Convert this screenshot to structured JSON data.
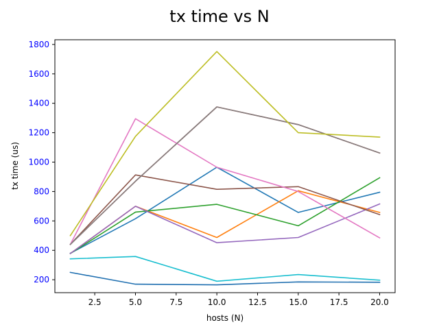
{
  "chart_data": {
    "type": "line",
    "title": "tx time vs N",
    "xlabel": "hosts (N)",
    "ylabel": "tx time (us)",
    "xlim": [
      0.05,
      20.95
    ],
    "ylim": [
      112,
      1832
    ],
    "xticks": [
      2.5,
      5.0,
      7.5,
      10.0,
      12.5,
      15.0,
      17.5,
      20.0
    ],
    "xtick_labels": [
      "2.5",
      "5.0",
      "7.5",
      "10.0",
      "12.5",
      "15.0",
      "17.5",
      "20.0"
    ],
    "yticks": [
      200,
      400,
      600,
      800,
      1000,
      1200,
      1400,
      1600,
      1800
    ],
    "ytick_labels": [
      "200",
      "400",
      "600",
      "800",
      "1000",
      "1200",
      "1400",
      "1600",
      "1800"
    ],
    "ytick_color": "#0000ff",
    "grid": false,
    "legend": "none",
    "x": [
      1,
      5,
      10,
      15,
      20
    ],
    "series": [
      {
        "color": "#1f77b4",
        "values": [
          380,
          615,
          965,
          658,
          795
        ]
      },
      {
        "color": "#ff7f0e",
        "values": [
          378,
          700,
          487,
          805,
          658
        ]
      },
      {
        "color": "#2ca02c",
        "values": [
          378,
          660,
          713,
          567,
          893
        ]
      },
      {
        "color": "#d62728",
        "values": [
          440,
          870,
          1375,
          1255,
          1062
        ]
      },
      {
        "color": "#9467bd",
        "values": [
          378,
          700,
          452,
          487,
          715
        ]
      },
      {
        "color": "#8c564b",
        "values": [
          440,
          913,
          815,
          833,
          643
        ]
      },
      {
        "color": "#e377c2",
        "values": [
          440,
          1295,
          965,
          800,
          485
        ]
      },
      {
        "color": "#7f7f7f",
        "values": [
          440,
          870,
          1375,
          1255,
          1062
        ]
      },
      {
        "color": "#bcbd22",
        "values": [
          500,
          1175,
          1752,
          1200,
          1170
        ]
      },
      {
        "color": "#17becf",
        "values": [
          342,
          358,
          190,
          235,
          197
        ]
      },
      {
        "color": "#1f6fb0",
        "values": [
          250,
          170,
          165,
          185,
          183
        ]
      }
    ]
  }
}
